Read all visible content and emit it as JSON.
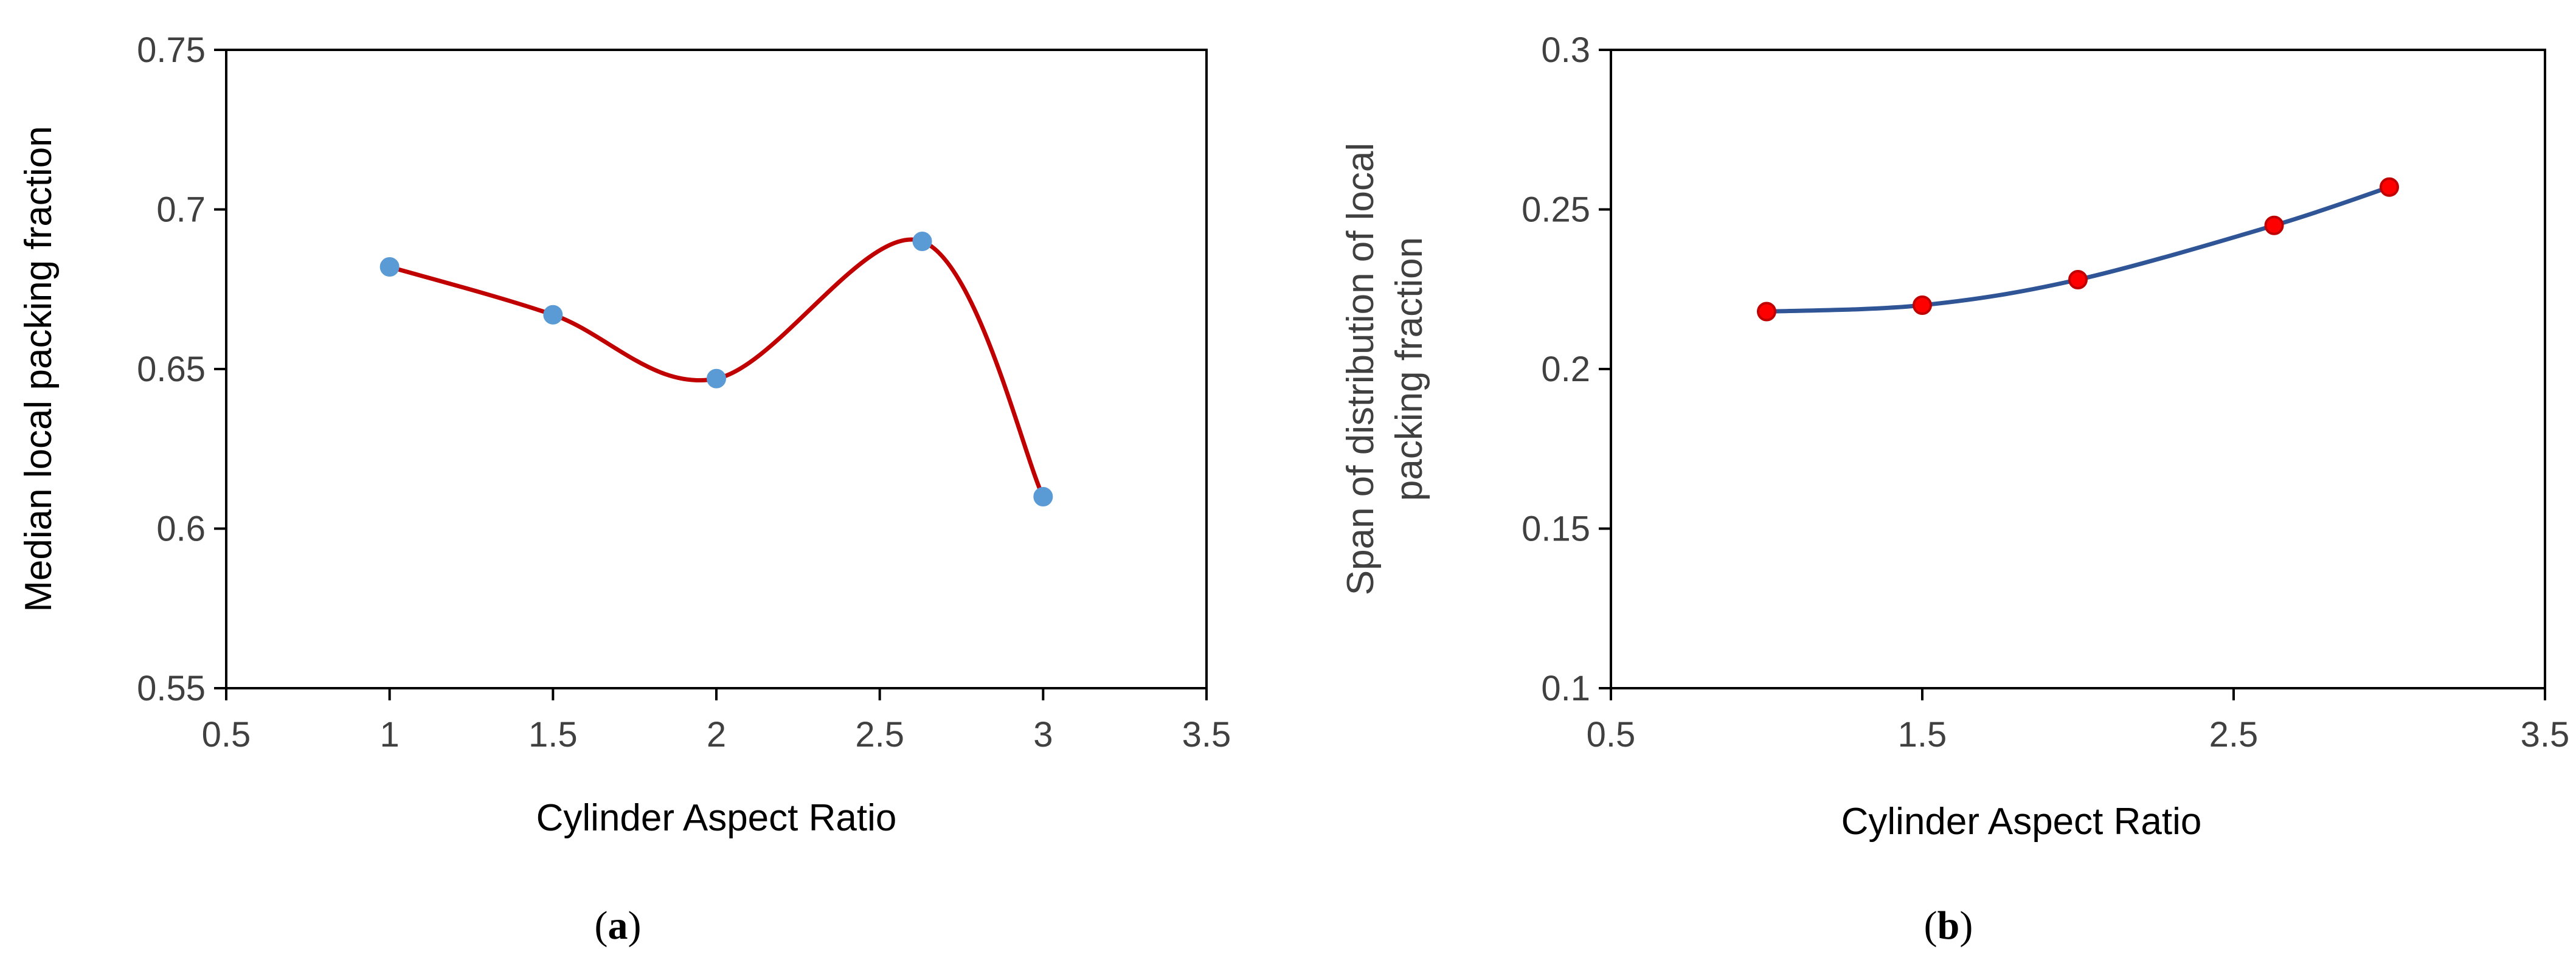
{
  "chart_data": [
    {
      "type": "line",
      "panel_label": "a",
      "xlabel": "Cylinder Aspect Ratio",
      "ylabel": "Median  local packing fraction",
      "xlim": [
        0.5,
        3.5
      ],
      "ylim": [
        0.55,
        0.75
      ],
      "x_ticks": [
        "0.5",
        "1",
        "1.5",
        "2",
        "2.5",
        "3",
        "3.5"
      ],
      "y_ticks": [
        "0.55",
        "0.6",
        "0.65",
        "0.7",
        "0.75"
      ],
      "smooth": true,
      "line_color": "#C00000",
      "marker_fill": "#5B9BD5",
      "marker_stroke": "#5B9BD5",
      "grid": false,
      "series": [
        {
          "x": [
            1,
            1.5,
            2,
            2.63,
            3
          ],
          "y": [
            0.682,
            0.667,
            0.647,
            0.69,
            0.61
          ]
        }
      ]
    },
    {
      "type": "line",
      "panel_label": "b",
      "xlabel": "Cylinder Aspect Ratio",
      "ylabel": "Span of distribution of local packing fraction",
      "ylabel_lines": [
        "Span of distribution of local",
        "packing fraction"
      ],
      "xlim": [
        0.5,
        3.5
      ],
      "ylim": [
        0.1,
        0.3
      ],
      "x_ticks": [
        "0.5",
        "1.5",
        "2.5",
        "3.5"
      ],
      "y_ticks": [
        "0.1",
        "0.15",
        "0.2",
        "0.25",
        "0.3"
      ],
      "smooth": true,
      "line_color": "#2F5597",
      "marker_fill": "#FF0000",
      "marker_stroke": "#C00000",
      "grid": false,
      "series": [
        {
          "x": [
            1,
            1.5,
            2,
            2.63,
            3
          ],
          "y": [
            0.218,
            0.22,
            0.228,
            0.245,
            0.257
          ]
        }
      ]
    }
  ]
}
